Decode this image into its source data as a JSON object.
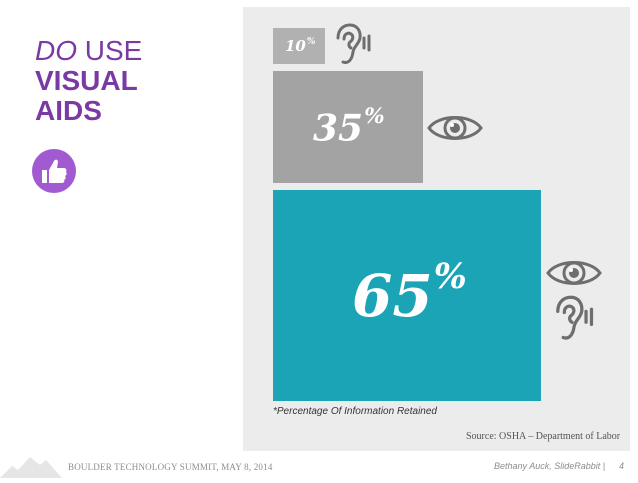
{
  "title": {
    "part1": "DO",
    "part2": " USE",
    "line2": "VISUAL",
    "line3": "AIDS"
  },
  "icons": {
    "thumbs_up": "thumbs-up-icon",
    "ear": "ear-icon",
    "eye": "eye-icon"
  },
  "stats": [
    {
      "value": "10",
      "unit": "%",
      "senses": [
        "ear"
      ]
    },
    {
      "value": "35",
      "unit": "%",
      "senses": [
        "eye"
      ]
    },
    {
      "value": "65",
      "unit": "%",
      "senses": [
        "eye",
        "ear"
      ]
    }
  ],
  "note": "*Percentage Of Information Retained",
  "source": "Source: OSHA – Department of Labor",
  "footer": {
    "event": "BOULDER TECHNOLOGY SUMMIT, MAY 8, 2014",
    "author": "Bethany Auck, SlideRabbit",
    "separator": "|",
    "page": "4"
  },
  "colors": {
    "title": "#7b3aa3",
    "thumb_bg": "#a25ad1",
    "panel": "#ececec",
    "box10": "#b1b1b1",
    "box35": "#a3a3a3",
    "box65": "#1aa4b5",
    "icon": "#6e6e6e"
  }
}
